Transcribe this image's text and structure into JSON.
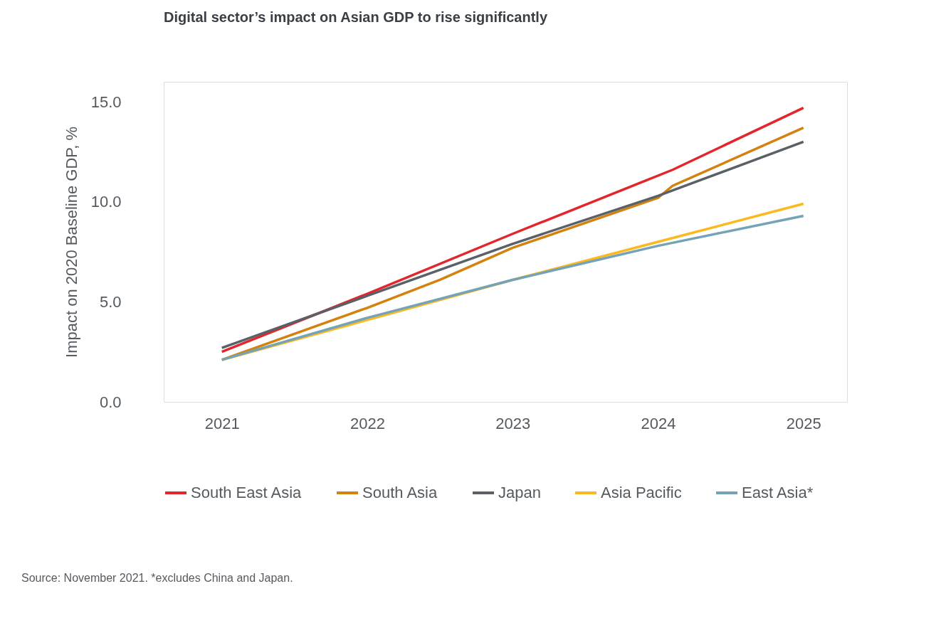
{
  "chart_data": {
    "type": "line",
    "title": "Digital sector’s impact on Asian GDP to rise significantly",
    "ylabel": "Impact on 2020 Baseline GDP, %",
    "xlim": [
      2020.6,
      2025.3
    ],
    "xticks": [
      2021,
      2022,
      2023,
      2024,
      2025
    ],
    "ylim": [
      0,
      16
    ],
    "yticks": [
      {
        "value": 0,
        "label": "0.0"
      },
      {
        "value": 5,
        "label": "5.0"
      },
      {
        "value": 10,
        "label": "10.0"
      },
      {
        "value": 15,
        "label": "15.0"
      }
    ],
    "grid": false,
    "legend": "bottom",
    "marker": "none",
    "line_style": "solid",
    "series": [
      {
        "name": "South East Asia",
        "color": "#e3262b",
        "x": [
          2021,
          2022,
          2023,
          2024.1,
          2025
        ],
        "values": [
          2.5,
          5.4,
          8.4,
          11.6,
          14.7
        ]
      },
      {
        "name": "South Asia",
        "color": "#d4820f",
        "x": [
          2021,
          2022,
          2022.5,
          2023,
          2024,
          2024.1,
          2025
        ],
        "values": [
          2.1,
          4.7,
          6.1,
          7.7,
          10.2,
          10.8,
          13.7
        ]
      },
      {
        "name": "Japan",
        "color": "#5a6068",
        "x": [
          2021,
          2022,
          2023,
          2024,
          2025
        ],
        "values": [
          2.7,
          5.3,
          7.9,
          10.3,
          13.0
        ]
      },
      {
        "name": "Asia Pacific",
        "color": "#fbb81f",
        "x": [
          2021,
          2022,
          2023,
          2024,
          2025
        ],
        "values": [
          2.1,
          4.1,
          6.1,
          8.0,
          9.9
        ]
      },
      {
        "name": "East Asia*",
        "color": "#74a3b8",
        "x": [
          2021,
          2022,
          2023,
          2024,
          2025
        ],
        "values": [
          2.1,
          4.2,
          6.1,
          7.8,
          9.3
        ]
      }
    ],
    "annotations": [
      "Source: November 2021. *excludes China and Japan."
    ]
  }
}
